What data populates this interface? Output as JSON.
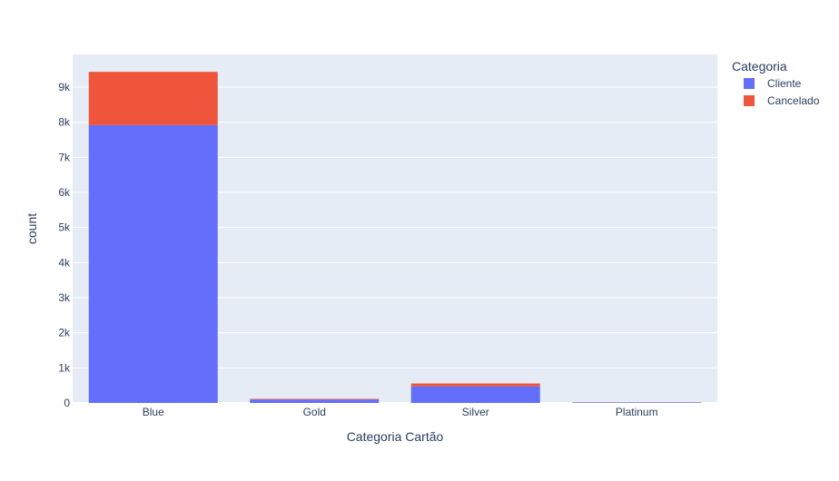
{
  "chart_data": {
    "type": "bar",
    "barmode": "stack",
    "categories": [
      "Blue",
      "Gold",
      "Silver",
      "Platinum"
    ],
    "series": [
      {
        "name": "Cliente",
        "values": [
          7917,
          95,
          473,
          15
        ],
        "color": "#636efa"
      },
      {
        "name": "Cancelado",
        "values": [
          1519,
          21,
          82,
          5
        ],
        "color": "#ef553b"
      }
    ],
    "title": "",
    "xlabel": "Categoria Cartão",
    "ylabel": "count",
    "ylim": [
      0,
      9932
    ],
    "yticks": [
      0,
      1000,
      2000,
      3000,
      4000,
      5000,
      6000,
      7000,
      8000,
      9000
    ],
    "ytick_labels": [
      "0",
      "1k",
      "2k",
      "3k",
      "4k",
      "5k",
      "6k",
      "7k",
      "8k",
      "9k"
    ],
    "legend": {
      "title": "Categoria",
      "position": "top-right"
    },
    "grid": true,
    "plot_background": "#e5ecf6",
    "text_color": "#2a3f5f"
  }
}
